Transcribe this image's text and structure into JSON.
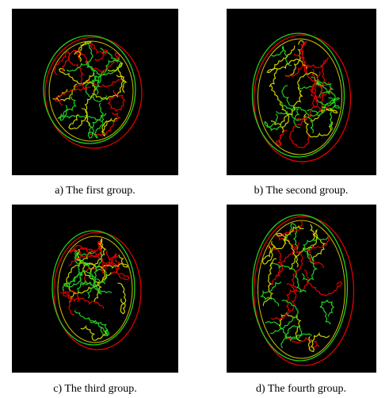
{
  "figures": [
    {
      "caption": "a) The first group."
    },
    {
      "caption": "b) The second group."
    },
    {
      "caption": "c) The third group."
    },
    {
      "caption": "d) The fourth group."
    }
  ]
}
